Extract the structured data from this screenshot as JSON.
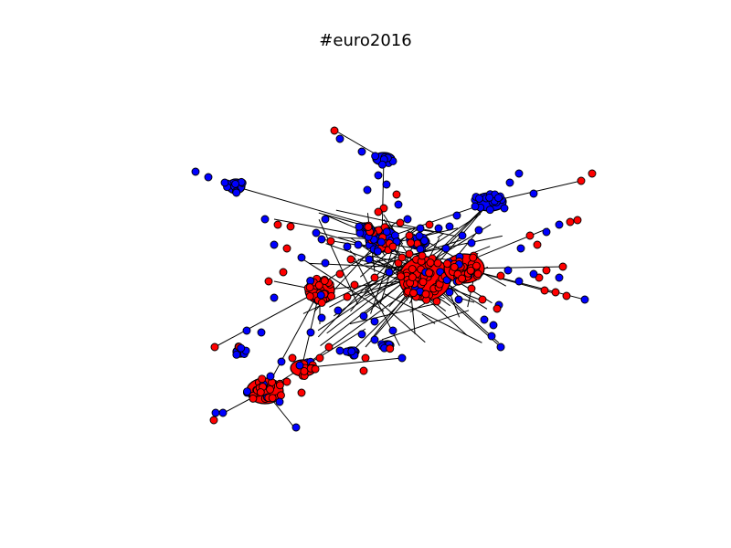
{
  "figure": {
    "title": "#euro2016",
    "node_colors": {
      "red": "#ff0000",
      "blue": "#0000ff"
    },
    "edge_color": "#000000"
  }
}
